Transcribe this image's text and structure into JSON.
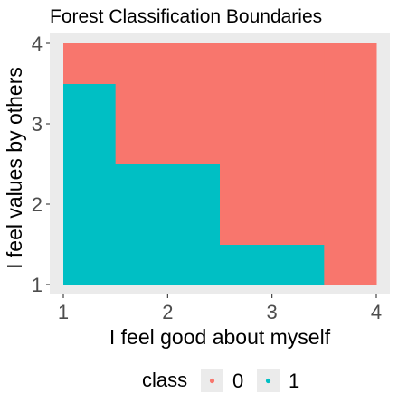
{
  "chart_data": {
    "type": "heatmap",
    "title": "Forest Classification Boundaries",
    "xlabel": "I feel good about myself",
    "ylabel": "I feel values by others",
    "xlim": [
      1,
      4
    ],
    "ylim": [
      1,
      4
    ],
    "x_ticks": [
      "1",
      "2",
      "3",
      "4"
    ],
    "y_ticks": [
      "1",
      "2",
      "3",
      "4"
    ],
    "grid": true,
    "legend_position": "bottom",
    "legend": {
      "title": "class",
      "entries": [
        {
          "label": "0",
          "color": "#F8766D"
        },
        {
          "label": "1",
          "color": "#00BFC4"
        }
      ]
    },
    "classes": [
      "0",
      "1"
    ],
    "x_values": [
      1,
      2,
      3,
      4
    ],
    "y_values": [
      1,
      2,
      3,
      4
    ],
    "grid_classes": [
      [
        "1",
        "1",
        "1",
        "0"
      ],
      [
        "1",
        "1",
        "0",
        "0"
      ],
      [
        "1",
        "0",
        "0",
        "0"
      ],
      [
        "0",
        "0",
        "0",
        "0"
      ]
    ],
    "colors": {
      "class_0": "#F8766D",
      "class_1": "#00BFC4",
      "panel_background": "#EBEBEB"
    }
  }
}
